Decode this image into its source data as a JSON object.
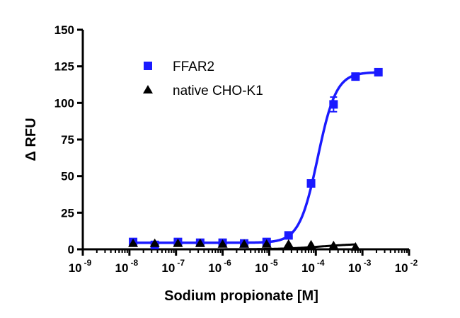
{
  "chart_data": {
    "type": "scatter",
    "xlabel": "Sodium propionate [M]",
    "ylabel": "Δ RFU",
    "x_scale": "log10",
    "xlim": [
      1e-09,
      0.01
    ],
    "ylim": [
      0,
      150
    ],
    "x_tick_labels": [
      {
        "base": "10",
        "exp": "-9"
      },
      {
        "base": "10",
        "exp": "-8"
      },
      {
        "base": "10",
        "exp": "-7"
      },
      {
        "base": "10",
        "exp": "-6"
      },
      {
        "base": "10",
        "exp": "-5"
      },
      {
        "base": "10",
        "exp": "-4"
      },
      {
        "base": "10",
        "exp": "-3"
      },
      {
        "base": "10",
        "exp": "-2"
      }
    ],
    "y_ticks": [
      "0",
      "25",
      "50",
      "75",
      "100",
      "125",
      "150"
    ],
    "grid": false,
    "legend_position": "top-left",
    "series": [
      {
        "name": "FFAR2",
        "color": "#1a1aff",
        "marker": "square",
        "x": [
          1.2e-08,
          3.5e-08,
          1.1e-07,
          3.3e-07,
          1e-06,
          2.9e-06,
          8.8e-06,
          2.6e-05,
          7.9e-05,
          0.00024,
          0.00071,
          0.0022
        ],
        "y": [
          5,
          3,
          5,
          4.5,
          4.5,
          4,
          5,
          9.5,
          45,
          99,
          118,
          121
        ],
        "y_err": [
          0,
          0,
          0,
          0,
          0,
          0,
          0,
          1.5,
          2,
          5,
          2,
          1.5
        ],
        "fit": {
          "bottom": 4.5,
          "top": 121,
          "ec50": 0.00011,
          "hill": 2.2
        }
      },
      {
        "name": "native CHO-K1",
        "color": "#000000",
        "marker": "triangle",
        "x": [
          1.2e-08,
          3.5e-08,
          1.1e-07,
          3.3e-07,
          1e-06,
          2.9e-06,
          8.8e-06,
          2.6e-05,
          7.9e-05,
          0.00024,
          0.00071
        ],
        "y": [
          4,
          4,
          4,
          4,
          3.5,
          3.5,
          3.5,
          3.5,
          3,
          2.5,
          1.5
        ],
        "fit": {
          "bottom": 0,
          "top": 4,
          "ec50": 0.00014,
          "hill": 1.0
        }
      }
    ]
  }
}
